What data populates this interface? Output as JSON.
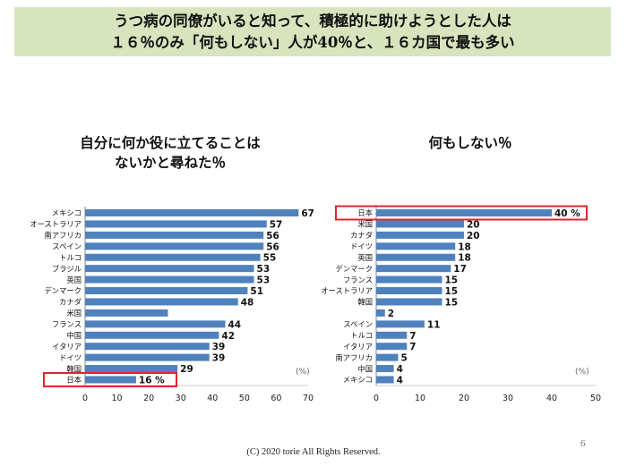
{
  "header": {
    "line1": "うつ病の同僚がいると知って、積極的に助けようとした人は",
    "line2": "１６％のみ「何もしない」人が40％と、１６カ国で最も多い",
    "bg_color": "#d7e4bd"
  },
  "footer": {
    "copyright": "(C) 2020 torie All Rights Reserved.",
    "page_number": "6"
  },
  "colors": {
    "bar": "#4f81bd",
    "highlight": "#e0242a"
  },
  "chart_data": [
    {
      "type": "bar",
      "orientation": "horizontal",
      "title_lines": [
        "自分に何か役に立てることは",
        "ないかと尋ねた％"
      ],
      "unit_label": "(%)",
      "xlim": [
        0,
        70
      ],
      "xticks": [
        0,
        10,
        20,
        30,
        40,
        50,
        60,
        70
      ],
      "highlight": "日本",
      "categories": [
        "メキシコ",
        "オーストラリア",
        "南アフリカ",
        "スペイン",
        "トルコ",
        "ブラジル",
        "英国",
        "デンマーク",
        "カナダ",
        "米国",
        "フランス",
        "中国",
        "イタリア",
        "ドイツ",
        "韓国",
        "日本"
      ],
      "values": [
        67,
        57,
        56,
        56,
        55,
        53,
        53,
        51,
        48,
        26,
        44,
        42,
        39,
        39,
        29,
        16
      ],
      "value_labels": [
        "67",
        "57",
        "56",
        "56",
        "55",
        "53",
        "53",
        "51",
        "48",
        "",
        "44",
        "42",
        "39",
        "39",
        "29",
        "16 %"
      ]
    },
    {
      "type": "bar",
      "orientation": "horizontal",
      "title_lines": [
        "何もしない％"
      ],
      "unit_label": "(%)",
      "xlim": [
        0,
        50
      ],
      "xticks": [
        0,
        10,
        20,
        30,
        40,
        50
      ],
      "highlight": "日本",
      "categories": [
        "日本",
        "米国",
        "カナダ",
        "ドイツ",
        "英国",
        "デンマーク",
        "フランス",
        "オーストラリア",
        "韓国",
        "",
        "スペイン",
        "トルコ",
        "イタリア",
        "南アフリカ",
        "中国",
        "メキシコ"
      ],
      "values": [
        40,
        20,
        20,
        18,
        18,
        17,
        15,
        15,
        15,
        2,
        11,
        7,
        7,
        5,
        4,
        4
      ],
      "value_labels": [
        "40 %",
        "20",
        "20",
        "18",
        "18",
        "17",
        "15",
        "15",
        "15",
        "2",
        "11",
        "7",
        "7",
        "5",
        "4",
        "4"
      ]
    }
  ]
}
